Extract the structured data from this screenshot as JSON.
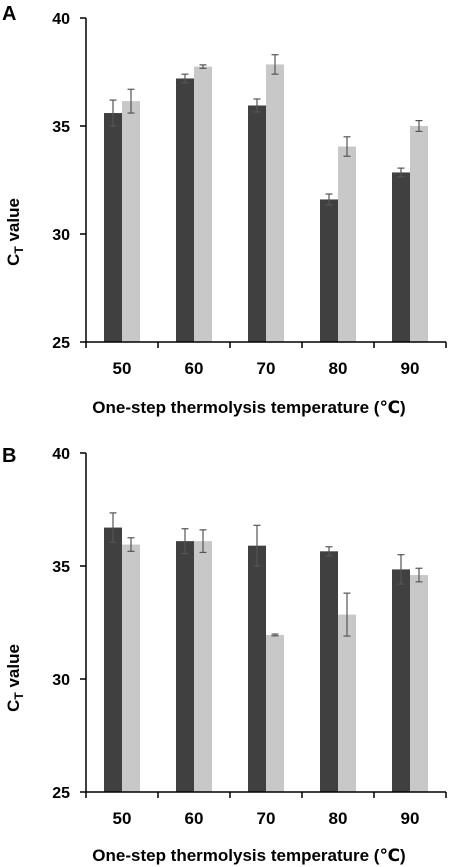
{
  "colors": {
    "series_dark": "#404040",
    "series_light": "#c8c8c8",
    "axis": "#000000",
    "error_bar": "#555555"
  },
  "chart_data": [
    {
      "panel_label": "A",
      "type": "bar",
      "categories": [
        "50",
        "60",
        "70",
        "80",
        "90"
      ],
      "xlabel": "One-step thermolysis temperature (℃)",
      "ylabel_main": "C",
      "ylabel_sub": "T",
      "ylabel_rest": " value",
      "ylim": [
        25,
        40
      ],
      "yticks": [
        25,
        30,
        35,
        40
      ],
      "grid": false,
      "series": [
        {
          "values": [
            35.6,
            37.2,
            35.95,
            31.6,
            32.85
          ],
          "errors": [
            0.6,
            0.2,
            0.3,
            0.25,
            0.2
          ]
        },
        {
          "values": [
            36.15,
            37.75,
            37.85,
            34.05,
            35.0
          ],
          "errors": [
            0.55,
            0.08,
            0.45,
            0.45,
            0.25
          ]
        }
      ]
    },
    {
      "panel_label": "B",
      "type": "bar",
      "categories": [
        "50",
        "60",
        "70",
        "80",
        "90"
      ],
      "xlabel": "One-step thermolysis temperature (℃)",
      "ylabel_main": "C",
      "ylabel_sub": "T",
      "ylabel_rest": " value",
      "ylim": [
        25,
        40
      ],
      "yticks": [
        25,
        30,
        35,
        40
      ],
      "grid": false,
      "series": [
        {
          "values": [
            36.7,
            36.1,
            35.9,
            35.65,
            34.85
          ],
          "errors": [
            0.65,
            0.55,
            0.9,
            0.2,
            0.65
          ]
        },
        {
          "values": [
            35.95,
            36.1,
            31.95,
            32.85,
            34.6
          ],
          "errors": [
            0.3,
            0.5,
            0.04,
            0.95,
            0.3
          ]
        }
      ]
    }
  ]
}
